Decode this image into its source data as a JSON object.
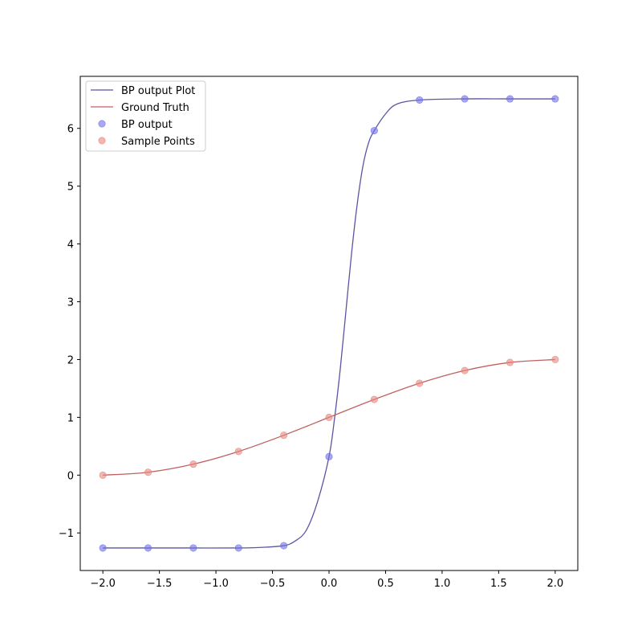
{
  "chart_data": {
    "type": "line",
    "title": "",
    "xlabel": "",
    "ylabel": "",
    "xlim": [
      -2.2,
      2.2
    ],
    "ylim": [
      -1.65,
      6.9
    ],
    "xticks": [
      -2.0,
      -1.5,
      -1.0,
      -0.5,
      0.0,
      0.5,
      1.0,
      1.5,
      2.0
    ],
    "xtick_labels": [
      "−2.0",
      "−1.5",
      "−1.0",
      "−0.5",
      "0.0",
      "0.5",
      "1.0",
      "1.5",
      "2.0"
    ],
    "yticks": [
      -1,
      0,
      1,
      2,
      3,
      4,
      5,
      6
    ],
    "ytick_labels": [
      "−1",
      "0",
      "1",
      "2",
      "3",
      "4",
      "5",
      "6"
    ],
    "grid": false,
    "legend_position": "top-left",
    "series": [
      {
        "name": "BP output Plot",
        "kind": "line",
        "color": "#5b55a2",
        "x": [
          -2.0,
          -1.6,
          -1.2,
          -0.8,
          -0.6,
          -0.4,
          -0.3,
          -0.2,
          -0.1,
          0.0,
          0.05,
          0.1,
          0.15,
          0.2,
          0.25,
          0.3,
          0.35,
          0.4,
          0.5,
          0.6,
          0.8,
          1.2,
          1.6,
          2.0
        ],
        "y": [
          -1.26,
          -1.26,
          -1.26,
          -1.26,
          -1.25,
          -1.22,
          -1.14,
          -0.95,
          -0.45,
          0.32,
          1.0,
          1.85,
          2.85,
          3.85,
          4.7,
          5.35,
          5.75,
          5.96,
          6.25,
          6.42,
          6.49,
          6.51,
          6.51,
          6.51
        ]
      },
      {
        "name": "Ground Truth",
        "kind": "line",
        "color": "#c06060",
        "x": [
          -2.0,
          -1.6,
          -1.2,
          -0.8,
          -0.4,
          0.0,
          0.4,
          0.8,
          1.2,
          1.6,
          2.0
        ],
        "y": [
          0.0,
          0.05,
          0.19,
          0.41,
          0.69,
          1.0,
          1.31,
          1.59,
          1.81,
          1.95,
          2.0
        ]
      },
      {
        "name": "BP output",
        "kind": "scatter",
        "color": "#6f6fe8",
        "x": [
          -2.0,
          -1.6,
          -1.2,
          -0.8,
          -0.4,
          0.0,
          0.4,
          0.8,
          1.2,
          1.6,
          2.0
        ],
        "y": [
          -1.26,
          -1.26,
          -1.26,
          -1.26,
          -1.22,
          0.32,
          5.96,
          6.49,
          6.51,
          6.51,
          6.51
        ]
      },
      {
        "name": "Sample Points",
        "kind": "scatter",
        "color": "#e8857d",
        "x": [
          -2.0,
          -1.6,
          -1.2,
          -0.8,
          -0.4,
          0.0,
          0.4,
          0.8,
          1.2,
          1.6,
          2.0
        ],
        "y": [
          0.0,
          0.05,
          0.19,
          0.41,
          0.69,
          1.0,
          1.31,
          1.59,
          1.81,
          1.95,
          2.0
        ]
      }
    ]
  }
}
